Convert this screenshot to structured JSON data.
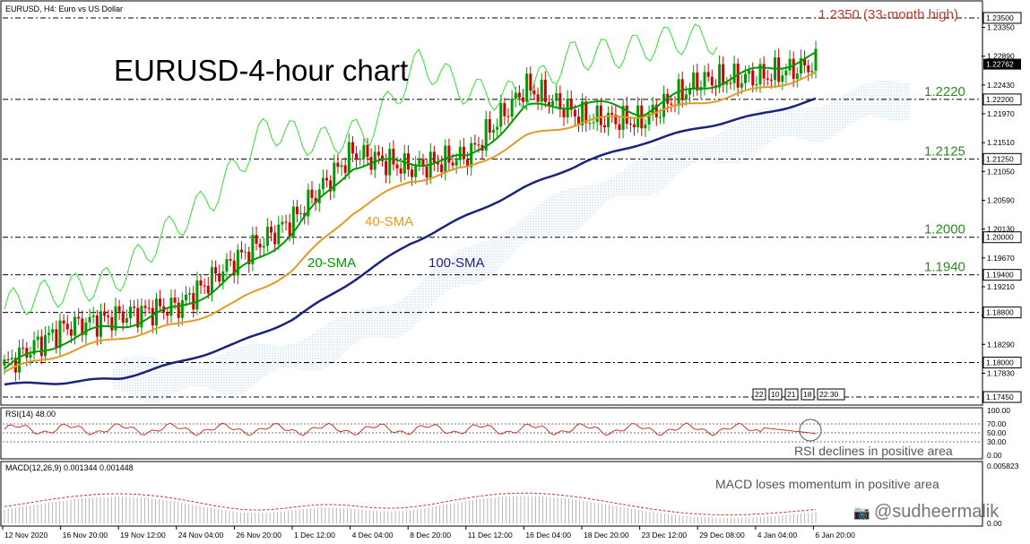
{
  "header": {
    "symbol_label": "EURUSD, H4:  Euro vs US Dollar",
    "big_title": "EURUSD-4-hour chart"
  },
  "annotations": {
    "high": "1.2350 (33-month high)",
    "sma20": "20-SMA",
    "sma40": "40-SMA",
    "sma100": "100-SMA",
    "rsi_note": "RSI declines in positive area",
    "macd_note": "MACD loses momentum in positive area",
    "watermark": "@sudheermalik"
  },
  "levels": [
    {
      "value": 1.235,
      "label": "1.2350 (33-month high)",
      "box": "1.23500"
    },
    {
      "value": 1.222,
      "label": "1.2220",
      "box": "1.22200"
    },
    {
      "value": 1.2125,
      "label": "1.2125",
      "box": "1.21250"
    },
    {
      "value": 1.2,
      "label": "1.2000",
      "box": "1.20000"
    },
    {
      "value": 1.194,
      "label": "1.1940",
      "box": "1.19400"
    },
    {
      "value": 1.188,
      "label": "",
      "box": "1.18800"
    },
    {
      "value": 1.18,
      "label": "",
      "box": "1.18000"
    },
    {
      "value": 1.1745,
      "label": "",
      "box": "1.17450"
    }
  ],
  "price_axis_ticks": [
    "1.23350",
    "1.22890",
    "1.22430",
    "1.21970",
    "1.21510",
    "1.21050",
    "1.20590",
    "1.20130",
    "1.19670",
    "1.19210",
    "1.18750",
    "1.18290",
    "1.17830"
  ],
  "current_price_box": "1.22762",
  "period_box": {
    "items": [
      "22",
      "10",
      "21",
      "18",
      "22:30"
    ]
  },
  "rsi": {
    "label": "RSI(14) 48.00",
    "ticks": [
      "100.00",
      "70.00",
      "50.00",
      "30.00",
      "0.00"
    ]
  },
  "macd": {
    "label": "MACD(12,26,9) 0.001344 0.001448",
    "ticks": [
      "0.005823",
      "0.00"
    ]
  },
  "x_axis_labels": [
    "12 Nov 2020",
    "16 Nov 20:00",
    "19 Nov 12:00",
    "24 Nov 04:00",
    "26 Nov 20:00",
    "1 Dec 12:00",
    "4 Dec 04:00",
    "8 Dec 20:00",
    "11 Dec 12:00",
    "16 Dec 04:00",
    "18 Dec 20:00",
    "23 Dec 12:00",
    "29 Dec 08:00",
    "4 Jan 04:00",
    "6 Jan 20:00"
  ],
  "colors": {
    "sma20": "#009900",
    "sma40": "#e39a24",
    "sma100": "#1a237e",
    "bull": "#009900",
    "bear": "#cc0000",
    "level_text": "#2e8b22",
    "high_text": "#c0392b",
    "rsi": "#c0392b",
    "macd": "#c0392b",
    "cloud": "#9fc3f0"
  },
  "chart_data": {
    "type": "line",
    "title": "EURUSD-4-hour chart",
    "xlabel": "",
    "ylabel": "",
    "ylim": [
      1.1745,
      1.2368
    ],
    "x": [
      "12 Nov 2020",
      "16 Nov 20:00",
      "19 Nov 12:00",
      "24 Nov 04:00",
      "26 Nov 20:00",
      "1 Dec 12:00",
      "4 Dec 04:00",
      "8 Dec 20:00",
      "11 Dec 12:00",
      "16 Dec 04:00",
      "18 Dec 20:00",
      "23 Dec 12:00",
      "29 Dec 08:00",
      "4 Jan 04:00",
      "6 Jan 20:00"
    ],
    "series": [
      {
        "name": "EURUSD",
        "values": [
          1.1795,
          1.1855,
          1.1875,
          1.189,
          1.1965,
          1.203,
          1.2135,
          1.211,
          1.213,
          1.224,
          1.219,
          1.2185,
          1.225,
          1.2255,
          1.2276
        ]
      },
      {
        "name": "20-SMA",
        "values": [
          1.179,
          1.1835,
          1.186,
          1.1885,
          1.194,
          1.201,
          1.2115,
          1.212,
          1.2125,
          1.2205,
          1.2215,
          1.22,
          1.224,
          1.2265,
          1.229
        ]
      },
      {
        "name": "40-SMA",
        "values": [
          1.1785,
          1.1815,
          1.184,
          1.186,
          1.1895,
          1.195,
          1.204,
          1.209,
          1.211,
          1.216,
          1.2185,
          1.2195,
          1.2215,
          1.2235,
          1.226
        ]
      },
      {
        "name": "100-SMA",
        "values": [
          1.1765,
          1.1768,
          1.1775,
          1.18,
          1.183,
          1.187,
          1.193,
          1.199,
          1.2035,
          1.208,
          1.212,
          1.215,
          1.2175,
          1.2195,
          1.222
        ]
      }
    ],
    "hlines": [
      1.235,
      1.222,
      1.2125,
      1.2,
      1.194,
      1.188,
      1.18,
      1.1745
    ],
    "rsi_last": 48.0,
    "macd_last": [
      0.001344,
      0.001448
    ]
  }
}
